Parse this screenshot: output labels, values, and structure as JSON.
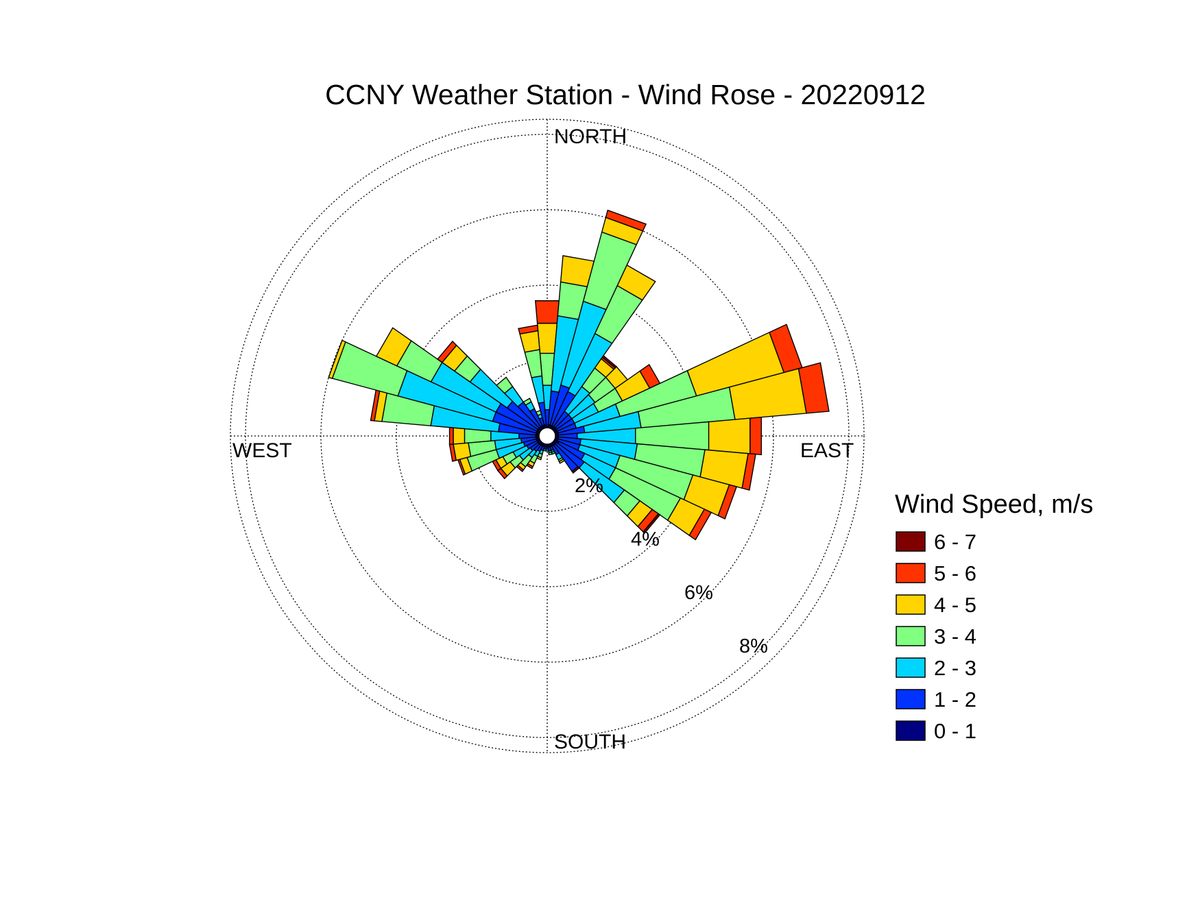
{
  "chart_data": {
    "type": "windrose",
    "title": "CCNY Weather Station - Wind Rose - 20220912",
    "direction_labels": [
      "NORTH",
      "EAST",
      "SOUTH",
      "WEST"
    ],
    "radial_unit": "%",
    "radial_ticks": [
      2,
      4,
      6,
      8
    ],
    "radial_tick_labels": [
      "2%",
      "4%",
      "6%",
      "8%"
    ],
    "rmax": 8.4,
    "grid": true,
    "legend": {
      "title": "Wind Speed, m/s",
      "placement": "bottom-right",
      "entries": [
        "6 - 7",
        "5 - 6",
        "4 - 5",
        "3 - 4",
        "2 - 3",
        "1 - 2",
        "0 - 1"
      ],
      "colors": [
        "#800000",
        "#ff3300",
        "#ffd400",
        "#80ff80",
        "#00d5ff",
        "#0033ff",
        "#000080"
      ]
    },
    "bins": [
      "0 - 1",
      "1 - 2",
      "2 - 3",
      "3 - 4",
      "4 - 5",
      "5 - 6",
      "6 - 7"
    ],
    "bin_colors": [
      "#000080",
      "#0033ff",
      "#00d5ff",
      "#80ff80",
      "#ffd400",
      "#ff3300",
      "#800000"
    ],
    "sector_width_deg": 10,
    "sectors": [
      {
        "dir": 0,
        "cum": [
          0.25,
          0.7,
          1.35,
          2.2,
          3.0,
          3.6,
          3.6
        ]
      },
      {
        "dir": 10,
        "cum": [
          0.3,
          1.2,
          3.2,
          4.1,
          4.8,
          4.8,
          4.8
        ]
      },
      {
        "dir": 20,
        "cum": [
          0.3,
          1.4,
          3.7,
          5.6,
          6.0,
          6.2,
          6.2
        ]
      },
      {
        "dir": 30,
        "cum": [
          0.3,
          1.3,
          3.0,
          4.4,
          5.0,
          5.0,
          5.0
        ]
      },
      {
        "dir": 40,
        "cum": [
          0.3,
          0.8,
          1.6,
          2.2,
          2.5,
          2.55,
          2.6
        ]
      },
      {
        "dir": 50,
        "cum": [
          0.3,
          0.8,
          1.55,
          2.2,
          2.6,
          2.6,
          2.6
        ]
      },
      {
        "dir": 60,
        "cum": [
          0.3,
          0.8,
          1.5,
          2.2,
          3.0,
          3.3,
          3.3
        ]
      },
      {
        "dir": 70,
        "cum": [
          0.3,
          0.8,
          2.0,
          4.1,
          6.5,
          7.0,
          7.0
        ]
      },
      {
        "dir": 80,
        "cum": [
          0.3,
          1.0,
          2.5,
          5.0,
          6.9,
          7.5,
          7.5
        ]
      },
      {
        "dir": 90,
        "cum": [
          0.3,
          0.8,
          2.35,
          4.3,
          5.4,
          5.7,
          5.7
        ]
      },
      {
        "dir": 100,
        "cum": [
          0.3,
          0.9,
          2.4,
          4.2,
          5.35,
          5.55,
          5.55
        ]
      },
      {
        "dir": 110,
        "cum": [
          0.3,
          0.9,
          2.0,
          4.0,
          5.0,
          5.2,
          5.2
        ]
      },
      {
        "dir": 120,
        "cum": [
          0.35,
          1.1,
          2.0,
          3.9,
          4.6,
          4.8,
          4.8
        ]
      },
      {
        "dir": 130,
        "cum": [
          0.3,
          1.2,
          2.5,
          3.0,
          3.4,
          3.6,
          3.65
        ]
      },
      {
        "dir": 140,
        "cum": [
          0.3,
          1.15,
          1.15,
          1.15,
          1.15,
          1.15,
          1.2
        ]
      },
      {
        "dir": 150,
        "cum": [
          0.3,
          0.55,
          0.7,
          0.75,
          0.8,
          0.8,
          0.8
        ]
      },
      {
        "dir": 160,
        "cum": [
          0.3,
          0.4,
          0.45,
          0.5,
          0.5,
          0.5,
          0.5
        ]
      },
      {
        "dir": 170,
        "cum": [
          0.3,
          0.4,
          0.45,
          0.5,
          0.5,
          0.5,
          0.5
        ]
      },
      {
        "dir": 180,
        "cum": [
          0.3,
          0.35,
          0.4,
          0.4,
          0.4,
          0.4,
          0.4
        ]
      },
      {
        "dir": 190,
        "cum": [
          0.3,
          0.35,
          0.4,
          0.4,
          0.4,
          0.4,
          0.4
        ]
      },
      {
        "dir": 200,
        "cum": [
          0.3,
          0.4,
          0.5,
          0.6,
          0.65,
          0.65,
          0.65
        ]
      },
      {
        "dir": 210,
        "cum": [
          0.3,
          0.45,
          0.6,
          0.8,
          0.9,
          0.95,
          0.95
        ]
      },
      {
        "dir": 220,
        "cum": [
          0.3,
          0.5,
          0.7,
          1.0,
          1.1,
          1.15,
          1.15
        ]
      },
      {
        "dir": 230,
        "cum": [
          0.3,
          0.55,
          0.9,
          1.2,
          1.5,
          1.6,
          1.6
        ]
      },
      {
        "dir": 240,
        "cum": [
          0.3,
          0.6,
          1.0,
          1.3,
          1.5,
          1.6,
          1.6
        ]
      },
      {
        "dir": 250,
        "cum": [
          0.3,
          0.65,
          1.4,
          2.2,
          2.4,
          2.45,
          2.45
        ]
      },
      {
        "dir": 260,
        "cum": [
          0.3,
          0.7,
          1.4,
          2.1,
          2.5,
          2.6,
          2.6
        ]
      },
      {
        "dir": 270,
        "cum": [
          0.3,
          0.75,
          1.5,
          2.2,
          2.5,
          2.6,
          2.6
        ]
      },
      {
        "dir": 280,
        "cum": [
          0.3,
          1.3,
          3.1,
          4.4,
          4.6,
          4.7,
          4.7
        ]
      },
      {
        "dir": 290,
        "cum": [
          0.3,
          1.5,
          4.1,
          5.9,
          6.0,
          6.0,
          6.0
        ]
      },
      {
        "dir": 300,
        "cum": [
          0.3,
          1.5,
          3.4,
          4.4,
          5.0,
          5.0,
          5.0
        ]
      },
      {
        "dir": 310,
        "cum": [
          0.3,
          1.3,
          2.5,
          3.0,
          3.4,
          3.55,
          3.55
        ]
      },
      {
        "dir": 320,
        "cum": [
          0.3,
          1.1,
          1.6,
          1.9,
          1.9,
          1.9,
          1.9
        ]
      },
      {
        "dir": 330,
        "cum": [
          0.3,
          0.8,
          1.0,
          1.1,
          1.1,
          1.1,
          1.1
        ]
      },
      {
        "dir": 340,
        "cum": [
          0.3,
          0.5,
          0.6,
          0.7,
          0.7,
          0.7,
          0.7
        ]
      },
      {
        "dir": 350,
        "cum": [
          0.3,
          0.9,
          1.6,
          2.3,
          2.8,
          2.95,
          2.95
        ]
      }
    ]
  }
}
